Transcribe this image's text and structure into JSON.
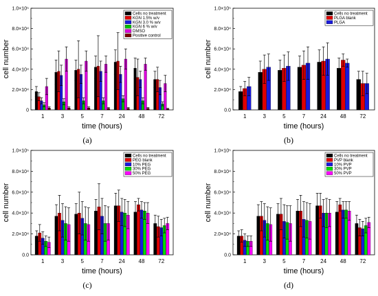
{
  "figure": {
    "panels": [
      "(a)",
      "(b)",
      "(c)",
      "(d)"
    ]
  },
  "chart_data": [
    {
      "panel": "(a)",
      "type": "bar",
      "xlabel": "time (hours)",
      "ylabel": "cell number",
      "ylim": [
        0,
        100000
      ],
      "yticks": [
        "0",
        "2.0×10⁴",
        "4.0×10⁴",
        "6.0×10⁴",
        "8.0×10⁴",
        "1.0×10⁵"
      ],
      "categories": [
        "1",
        "3",
        "5",
        "7",
        "24",
        "48",
        "72"
      ],
      "legend_position": "top-right",
      "series": [
        {
          "name": "Cells no treatment",
          "color": "#000000",
          "values": [
            18000,
            37000,
            39000,
            42000,
            47000,
            41000,
            30000
          ],
          "errors": [
            5000,
            12000,
            10000,
            11000,
            12000,
            10000,
            8000
          ]
        },
        {
          "name": "KGN 1.5% w/v",
          "color": "#e00000",
          "values": [
            13000,
            38000,
            40000,
            43000,
            48000,
            32000,
            30000
          ],
          "errors": [
            4000,
            20000,
            28000,
            30000,
            28000,
            18000,
            12000
          ]
        },
        {
          "name": "KGN 3.0 % w/v",
          "color": "#1a1adc",
          "values": [
            9000,
            34000,
            35000,
            38000,
            35000,
            30000,
            22000
          ],
          "errors": [
            3000,
            10000,
            9000,
            10000,
            8000,
            8000,
            7000
          ]
        },
        {
          "name": "KGN 6 % w/v",
          "color": "#00c000",
          "values": [
            5000,
            8000,
            9000,
            9000,
            11000,
            9000,
            6000
          ],
          "errors": [
            2000,
            3000,
            3000,
            3000,
            3000,
            3000,
            2000
          ]
        },
        {
          "name": "DMSO",
          "color": "#dd00dd",
          "values": [
            23000,
            50000,
            48000,
            45000,
            50000,
            45000,
            26000
          ],
          "errors": [
            8000,
            12000,
            10000,
            8000,
            10000,
            6000,
            8000
          ]
        },
        {
          "name": "Positive control",
          "color": "#7a0000",
          "values": [
            2000,
            2000,
            2000,
            1500,
            1500,
            1500,
            1000
          ],
          "errors": [
            1000,
            1000,
            1000,
            800,
            800,
            800,
            500
          ]
        }
      ]
    },
    {
      "panel": "(b)",
      "type": "bar",
      "xlabel": "time (hours)",
      "ylabel": "cell number",
      "ylim": [
        0,
        100000
      ],
      "yticks": [
        "0.0",
        "2.0×10⁴",
        "4.0×10⁴",
        "6.0×10⁴",
        "8.0×10⁴",
        "1.0×10⁵"
      ],
      "categories": [
        "1",
        "3",
        "5",
        "7",
        "24",
        "48",
        "72"
      ],
      "legend_position": "top-right",
      "series": [
        {
          "name": "Cells no treatment",
          "color": "#000000",
          "values": [
            18000,
            37000,
            39000,
            42000,
            47000,
            41000,
            30000
          ],
          "errors": [
            5000,
            11000,
            10000,
            11000,
            12000,
            10000,
            8000
          ]
        },
        {
          "name": "PLGA blank",
          "color": "#e00000",
          "values": [
            21000,
            40000,
            41000,
            44000,
            48000,
            49000,
            26000
          ],
          "errors": [
            7000,
            14000,
            13000,
            14000,
            14000,
            6000,
            12000
          ]
        },
        {
          "name": "PLGA",
          "color": "#1a1adc",
          "values": [
            23000,
            42000,
            43000,
            46000,
            50000,
            46000,
            26000
          ],
          "errors": [
            9000,
            13000,
            14000,
            16000,
            16000,
            4000,
            10000
          ]
        }
      ]
    },
    {
      "panel": "(c)",
      "type": "bar",
      "xlabel": "time (hours)",
      "ylabel": "cell number",
      "ylim": [
        0,
        100000
      ],
      "yticks": [
        "0.0",
        "2.0×10⁴",
        "4.0×10⁴",
        "6.0×10⁴",
        "8.0×10⁴",
        "1.0×10⁵"
      ],
      "categories": [
        "1",
        "3",
        "5",
        "7",
        "24",
        "48",
        "72"
      ],
      "legend_position": "top-right",
      "series": [
        {
          "name": "Cells no treatment",
          "color": "#000000",
          "values": [
            18000,
            37000,
            39000,
            42000,
            47000,
            41000,
            30000
          ],
          "errors": [
            5000,
            11000,
            10000,
            11000,
            12000,
            10000,
            8000
          ]
        },
        {
          "name": "PEG blank",
          "color": "#e00000",
          "values": [
            21000,
            40000,
            40000,
            46000,
            47000,
            48000,
            27000
          ],
          "errors": [
            8000,
            17000,
            20000,
            22000,
            15000,
            6000,
            10000
          ]
        },
        {
          "name": "10% PEG",
          "color": "#1a1adc",
          "values": [
            16000,
            33000,
            35000,
            37000,
            41000,
            43000,
            26000
          ],
          "errors": [
            6000,
            16000,
            16000,
            17000,
            13000,
            8000,
            8000
          ]
        },
        {
          "name": "30% PEG",
          "color": "#00dd00",
          "values": [
            13000,
            30000,
            30000,
            30000,
            40000,
            42000,
            28000
          ],
          "errors": [
            5000,
            16000,
            16000,
            17000,
            13000,
            8000,
            7000
          ]
        },
        {
          "name": "50% PEG",
          "color": "#ff00ff",
          "values": [
            12000,
            29000,
            29000,
            30000,
            38000,
            40000,
            30000
          ],
          "errors": [
            5000,
            16000,
            16000,
            16000,
            13000,
            10000,
            6000
          ]
        }
      ]
    },
    {
      "panel": "(d)",
      "type": "bar",
      "xlabel": "time (hours)",
      "ylabel": "cell number",
      "ylim": [
        0,
        100000
      ],
      "yticks": [
        "0.0",
        "2.0×10⁴",
        "4.0×10⁴",
        "6.0×10⁴",
        "8.0×10⁴",
        "1.0×10⁵"
      ],
      "categories": [
        "1",
        "3",
        "5",
        "7",
        "24",
        "48",
        "72"
      ],
      "legend_position": "top-right",
      "series": [
        {
          "name": "Cells no treatment",
          "color": "#000000",
          "values": [
            18000,
            37000,
            39000,
            42000,
            47000,
            41000,
            30000
          ],
          "errors": [
            5000,
            11000,
            10000,
            11000,
            12000,
            10000,
            8000
          ]
        },
        {
          "name": "PVP blank",
          "color": "#e00000",
          "values": [
            18000,
            37000,
            39000,
            42000,
            47000,
            48000,
            26000
          ],
          "errors": [
            6000,
            14000,
            15000,
            15000,
            12000,
            6000,
            8000
          ]
        },
        {
          "name": "10% PVP",
          "color": "#1a1adc",
          "values": [
            14000,
            33000,
            32000,
            34000,
            40000,
            43000,
            25000
          ],
          "errors": [
            6000,
            16000,
            16000,
            17000,
            13000,
            8000,
            7000
          ]
        },
        {
          "name": "30% PVP",
          "color": "#00dd00",
          "values": [
            13000,
            30000,
            31000,
            33000,
            40000,
            43000,
            28000
          ],
          "errors": [
            5000,
            16000,
            16000,
            17000,
            14000,
            8000,
            7000
          ]
        },
        {
          "name": "50% PVP",
          "color": "#ff00ff",
          "values": [
            13000,
            29000,
            30000,
            32000,
            40000,
            42000,
            31000
          ],
          "errors": [
            5000,
            16000,
            17000,
            17000,
            13000,
            9000,
            5000
          ]
        }
      ]
    }
  ]
}
